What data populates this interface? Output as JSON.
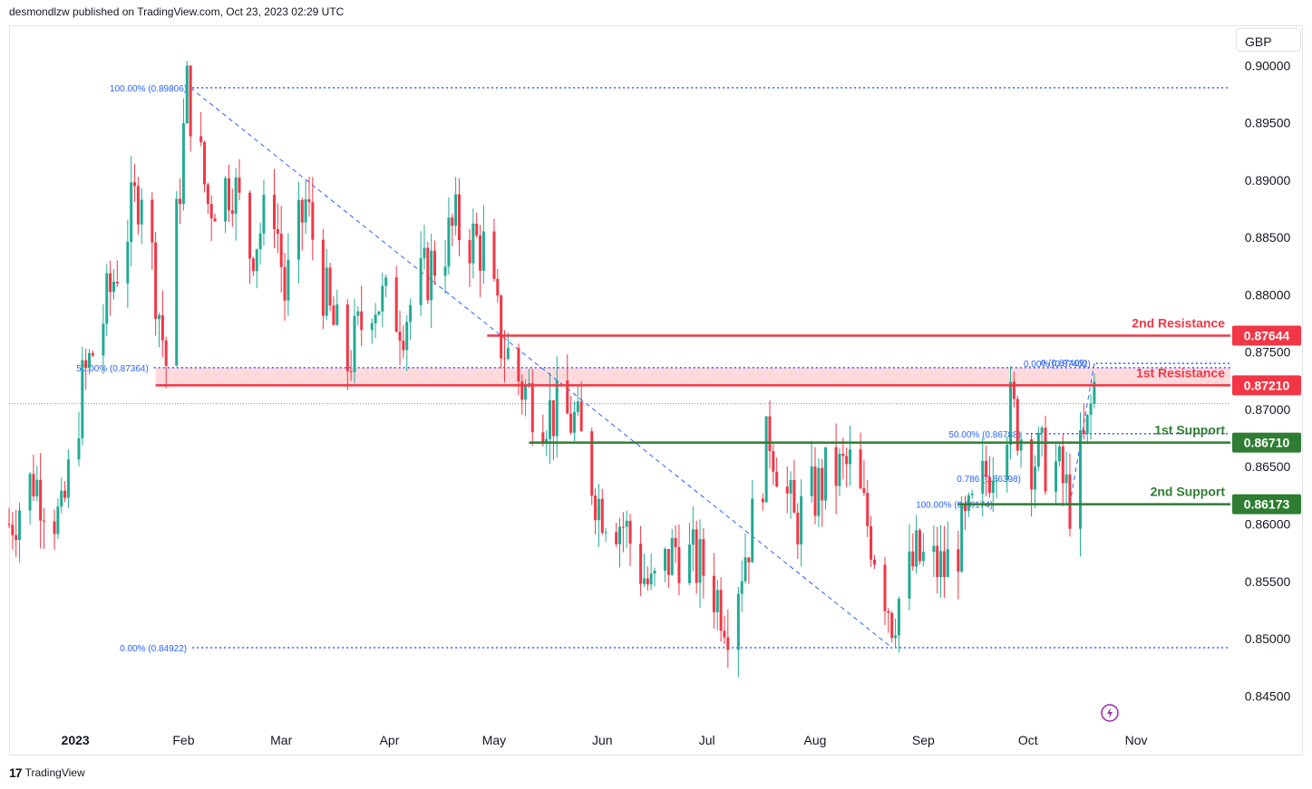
{
  "header": {
    "published": "desmondlzw published on TradingView.com, Oct 23, 2023 02:29 UTC"
  },
  "footer": {
    "logo_mark": "17",
    "brand": "TradingView"
  },
  "currency_label": "GBP",
  "colors": {
    "up": "#22ab94",
    "down": "#f23645",
    "resistance": "#f23645",
    "support": "#2e7d32",
    "fib": "#2962ff",
    "zone": "#ffcdd2",
    "text": "#131722",
    "flash": "#9c27b0"
  },
  "chart_data": {
    "type": "candlestick",
    "symbol_currency": "GBP",
    "ylim": [
      0.8425,
      0.9035
    ],
    "y_ticks": [
      0.845,
      0.85,
      0.855,
      0.86,
      0.865,
      0.87,
      0.875,
      0.88,
      0.885,
      0.89,
      0.895,
      0.9
    ],
    "y_tick_labels": [
      "0.84500",
      "0.85000",
      "0.85500",
      "0.86000",
      "0.86500",
      "0.87000",
      "0.87500",
      "0.88000",
      "0.88500",
      "0.89000",
      "0.89500",
      "0.90000"
    ],
    "x_labels": [
      {
        "label": "2023",
        "date": "2023-01-01",
        "bold": true
      },
      {
        "label": "Feb",
        "date": "2023-02-01"
      },
      {
        "label": "Mar",
        "date": "2023-03-01"
      },
      {
        "label": "Apr",
        "date": "2023-04-01"
      },
      {
        "label": "May",
        "date": "2023-05-01"
      },
      {
        "label": "Jun",
        "date": "2023-06-01"
      },
      {
        "label": "Jul",
        "date": "2023-07-01"
      },
      {
        "label": "Aug",
        "date": "2023-08-01"
      },
      {
        "label": "Sep",
        "date": "2023-09-01"
      },
      {
        "label": "Oct",
        "date": "2023-10-01"
      },
      {
        "label": "Nov",
        "date": "2023-11-01"
      }
    ],
    "xlim": [
      "2022-12-13",
      "2023-11-28"
    ],
    "price_path": [
      {
        "date": "2022-12-13",
        "close": 0.86
      },
      {
        "date": "2022-12-20",
        "close": 0.864
      },
      {
        "date": "2022-12-28",
        "close": 0.86
      },
      {
        "date": "2023-01-03",
        "close": 0.872
      },
      {
        "date": "2023-01-09",
        "close": 0.878
      },
      {
        "date": "2023-01-16",
        "close": 0.886
      },
      {
        "date": "2023-01-20",
        "close": 0.89
      },
      {
        "date": "2023-01-27",
        "close": 0.874
      },
      {
        "date": "2023-02-02",
        "close": 0.898
      },
      {
        "date": "2023-02-08",
        "close": 0.888
      },
      {
        "date": "2023-02-15",
        "close": 0.89
      },
      {
        "date": "2023-02-20",
        "close": 0.884
      },
      {
        "date": "2023-02-27",
        "close": 0.888
      },
      {
        "date": "2023-03-02",
        "close": 0.88
      },
      {
        "date": "2023-03-08",
        "close": 0.888
      },
      {
        "date": "2023-03-15",
        "close": 0.878
      },
      {
        "date": "2023-03-20",
        "close": 0.874
      },
      {
        "date": "2023-03-27",
        "close": 0.88
      },
      {
        "date": "2023-04-05",
        "close": 0.878
      },
      {
        "date": "2023-04-12",
        "close": 0.882
      },
      {
        "date": "2023-04-20",
        "close": 0.886
      },
      {
        "date": "2023-04-28",
        "close": 0.884
      },
      {
        "date": "2023-05-03",
        "close": 0.876
      },
      {
        "date": "2023-05-09",
        "close": 0.872
      },
      {
        "date": "2023-05-15",
        "close": 0.87
      },
      {
        "date": "2023-05-24",
        "close": 0.869
      },
      {
        "date": "2023-05-31",
        "close": 0.862
      },
      {
        "date": "2023-06-07",
        "close": 0.86
      },
      {
        "date": "2023-06-15",
        "close": 0.854
      },
      {
        "date": "2023-06-22",
        "close": 0.858
      },
      {
        "date": "2023-06-30",
        "close": 0.856
      },
      {
        "date": "2023-07-07",
        "close": 0.852
      },
      {
        "date": "2023-07-14",
        "close": 0.86
      },
      {
        "date": "2023-07-19",
        "close": 0.868
      },
      {
        "date": "2023-07-26",
        "close": 0.86
      },
      {
        "date": "2023-08-04",
        "close": 0.864
      },
      {
        "date": "2023-08-11",
        "close": 0.865
      },
      {
        "date": "2023-08-18",
        "close": 0.858
      },
      {
        "date": "2023-08-23",
        "close": 0.852
      },
      {
        "date": "2023-08-30",
        "close": 0.857
      },
      {
        "date": "2023-09-07",
        "close": 0.856
      },
      {
        "date": "2023-09-14",
        "close": 0.86
      },
      {
        "date": "2023-09-21",
        "close": 0.866
      },
      {
        "date": "2023-09-26",
        "close": 0.87
      },
      {
        "date": "2023-10-02",
        "close": 0.866
      },
      {
        "date": "2023-10-09",
        "close": 0.865
      },
      {
        "date": "2023-10-13",
        "close": 0.862
      },
      {
        "date": "2023-10-18",
        "close": 0.868
      },
      {
        "date": "2023-10-20",
        "close": 0.872
      },
      {
        "date": "2023-10-23",
        "close": 0.8705
      }
    ],
    "levels": [
      {
        "name": "2nd Resistance",
        "value": 0.87644,
        "label": "0.87644",
        "type": "resistance",
        "start": "2023-04-29"
      },
      {
        "name": "1st Resistance",
        "value": 0.8721,
        "label": "0.87210",
        "type": "resistance",
        "start": "2023-01-24"
      },
      {
        "name": "1st Support",
        "value": 0.8671,
        "label": "0.86710",
        "type": "support",
        "start": "2023-05-11"
      },
      {
        "name": "2nd Support",
        "value": 0.86173,
        "label": "0.86173",
        "type": "support",
        "start": "2023-09-11"
      }
    ],
    "resistance_zone": {
      "from": 0.8721,
      "to": 0.87364,
      "start": "2023-01-24"
    },
    "current_price": 0.8705,
    "fib_labels": [
      {
        "text": "100.00% (0.89806)",
        "value": 0.89806,
        "date": "2023-02-03",
        "lineTo": "2023-11-28"
      },
      {
        "text": "50.00% (0.87364)",
        "value": 0.87364,
        "date": "2023-01-23",
        "lineTo": "2023-11-28"
      },
      {
        "text": "0.00% (0.84922)",
        "value": 0.84922,
        "date": "2023-02-03",
        "lineTo": "2023-11-28"
      },
      {
        "text": "0.00% (0.87402)",
        "value": 0.87402,
        "date": "2023-10-20",
        "lineTo": "2023-11-28"
      },
      {
        "text": "0 (0.87409)",
        "value": 0.87409,
        "date": "2023-10-19",
        "lineTo": null
      },
      {
        "text": "50.00% (0.86788)",
        "value": 0.86788,
        "date": "2023-09-30",
        "lineTo": "2023-11-28"
      },
      {
        "text": "0.786 (0.86398)",
        "value": 0.86398,
        "date": "2023-09-30",
        "lineTo": null
      },
      {
        "text": "100.00% (0.86174)",
        "value": 0.86174,
        "date": "2023-09-22",
        "lineTo": null
      }
    ],
    "trendlines": [
      {
        "from": {
          "date": "2023-02-03",
          "value": 0.89806
        },
        "to": {
          "date": "2023-08-23",
          "value": 0.84922
        }
      },
      {
        "from": {
          "date": "2023-10-13",
          "value": 0.86174
        },
        "to": {
          "date": "2023-10-20",
          "value": 0.87402
        }
      }
    ]
  }
}
